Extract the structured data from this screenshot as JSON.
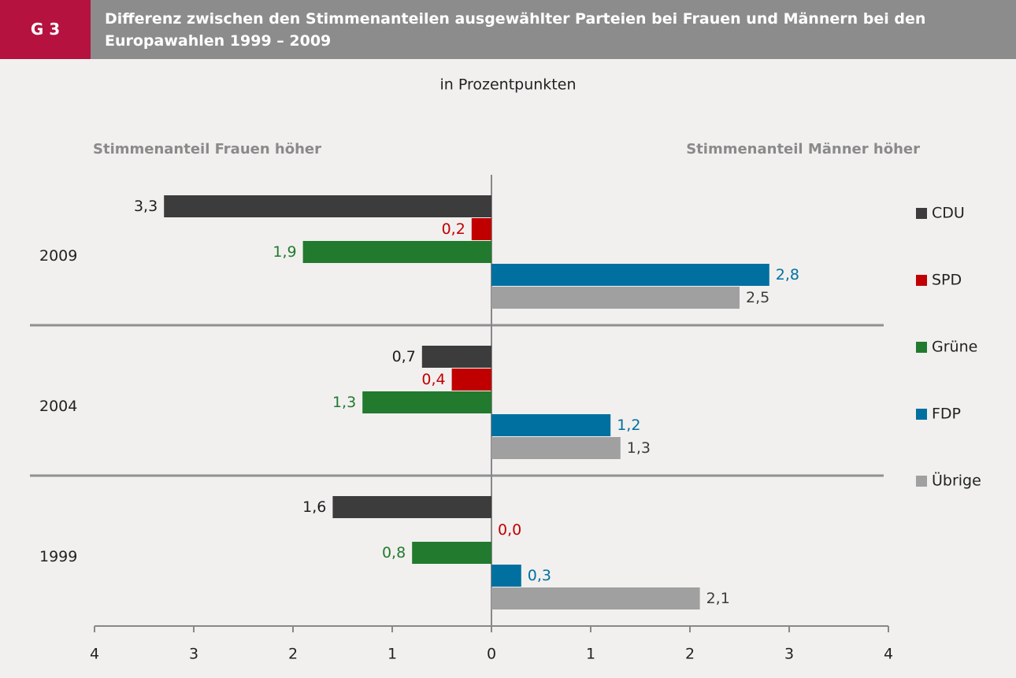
{
  "chart_data": {
    "type": "bar",
    "orientation": "horizontal",
    "badge": "G 3",
    "title": "Differenz zwischen den Stimmenanteilen ausgewählter Parteien bei Frauen und Männern bei den Europawahlen 1999 – 2009",
    "subtitle": "in Prozentpunkten",
    "left_label": "Stimmenanteil Frauen höher",
    "right_label": "Stimmenanteil Männer höher",
    "categories": [
      "2009",
      "2004",
      "1999"
    ],
    "series": [
      {
        "name": "CDU",
        "color": "#3c3c3c",
        "label_color": "#1e1e1e",
        "values": [
          -3.3,
          -0.7,
          -1.6
        ],
        "value_labels": [
          "3,3",
          "0,7",
          "1,6"
        ]
      },
      {
        "name": "SPD",
        "color": "#c00000",
        "label_color": "#c00000",
        "values": [
          -0.2,
          -0.4,
          0.0
        ],
        "value_labels": [
          "0,2",
          "0,4",
          "0,0"
        ]
      },
      {
        "name": "Grüne",
        "color": "#217a2e",
        "label_color": "#217a2e",
        "values": [
          -1.9,
          -1.3,
          -0.8
        ],
        "value_labels": [
          "1,9",
          "1,3",
          "0,8"
        ]
      },
      {
        "name": "FDP",
        "color": "#0070a0",
        "label_color": "#0070a0",
        "values": [
          2.8,
          1.2,
          0.3
        ],
        "value_labels": [
          "2,8",
          "1,2",
          "0,3"
        ]
      },
      {
        "name": "Übrige",
        "color": "#a0a0a0",
        "label_color": "#3c3c3c",
        "values": [
          2.5,
          1.3,
          2.1
        ],
        "value_labels": [
          "2,5",
          "1,3",
          "2,1"
        ]
      }
    ],
    "xlim": [
      -4,
      4
    ],
    "xticks": [
      {
        "value": -4,
        "label": "4"
      },
      {
        "value": -3,
        "label": "3"
      },
      {
        "value": -2,
        "label": "2"
      },
      {
        "value": -1,
        "label": "1"
      },
      0,
      1,
      2,
      3,
      4
    ],
    "legend": "right"
  }
}
